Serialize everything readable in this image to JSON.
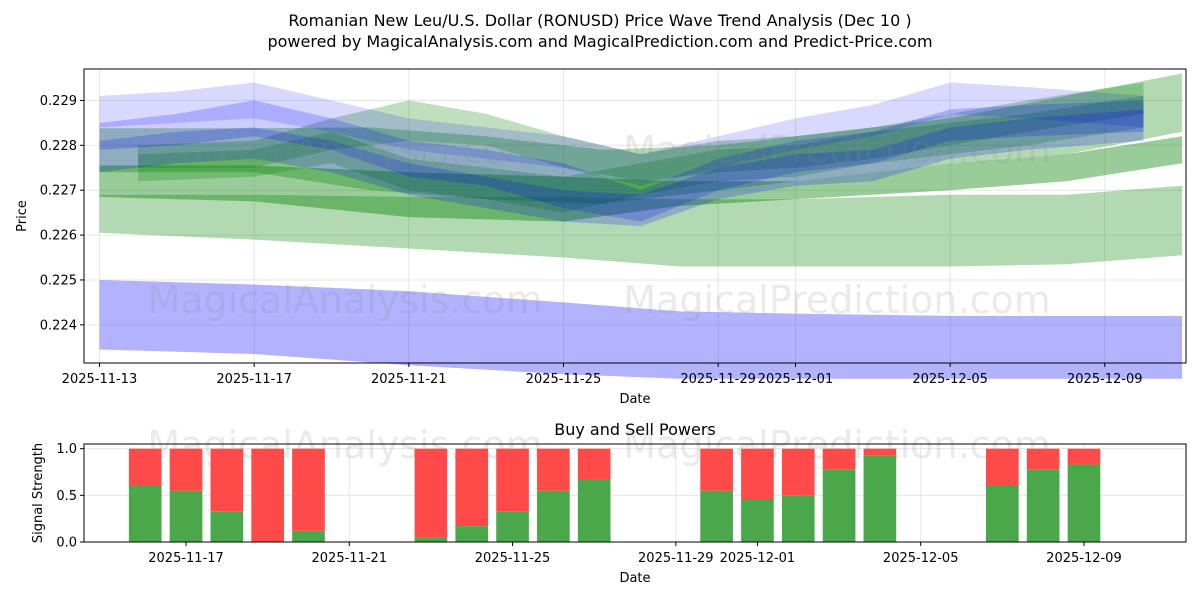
{
  "title_line1": "Romanian New Leu/U.S. Dollar (RONUSD) Price Wave Trend Analysis (Dec 10 )",
  "title_line2": "powered by MagicalAnalysis.com and MagicalPrediction.com and Predict-Price.com",
  "watermarks": {
    "left": "MagicalAnalysis.com",
    "right": "MagicalPrediction.com"
  },
  "colors": {
    "blue_band": "#0000ff",
    "green_band": "#008000",
    "buy": "#4aa84a",
    "sell": "#ff4a4a",
    "watermark": "#c8c8c8"
  },
  "chart_data": [
    {
      "type": "area",
      "title": "",
      "xlabel": "Date",
      "ylabel": "Price",
      "x_range": [
        "2025-11-12",
        "2025-12-11"
      ],
      "ylim": [
        0.22315,
        0.2297
      ],
      "grid": true,
      "x_ticks": [
        "2025-11-13",
        "2025-11-17",
        "2025-11-21",
        "2025-11-25",
        "2025-11-29",
        "2025-12-01",
        "2025-12-05",
        "2025-12-09"
      ],
      "y_ticks": [
        0.224,
        0.225,
        0.226,
        0.227,
        0.228,
        0.229
      ],
      "series": [
        {
          "name": "green-low-band",
          "color": "green",
          "opacity": 0.3,
          "x": [
            "2025-11-13",
            "2025-11-17",
            "2025-11-21",
            "2025-11-25",
            "2025-11-28",
            "2025-12-01",
            "2025-12-05",
            "2025-12-08",
            "2025-12-11"
          ],
          "upper": [
            0.2269,
            0.2269,
            0.22685,
            0.22685,
            0.2268,
            0.2268,
            0.2269,
            0.2269,
            0.2271
          ],
          "lower": [
            0.22605,
            0.2259,
            0.2257,
            0.2255,
            0.2253,
            0.2253,
            0.2253,
            0.22535,
            0.22555
          ]
        },
        {
          "name": "blue-low-band",
          "color": "blue",
          "opacity": 0.3,
          "x": [
            "2025-11-13",
            "2025-11-17",
            "2025-11-21",
            "2025-11-25",
            "2025-11-28",
            "2025-12-01",
            "2025-12-05",
            "2025-12-08",
            "2025-12-11"
          ],
          "upper": [
            0.225,
            0.2249,
            0.22475,
            0.2245,
            0.2243,
            0.22425,
            0.2242,
            0.2242,
            0.2242
          ],
          "lower": [
            0.22345,
            0.22335,
            0.2231,
            0.2229,
            0.2228,
            0.2228,
            0.2228,
            0.2228,
            0.2228
          ]
        },
        {
          "name": "green-mid-band-1",
          "color": "green",
          "opacity": 0.4,
          "x": [
            "2025-11-13",
            "2025-11-17",
            "2025-11-21",
            "2025-11-25",
            "2025-11-28",
            "2025-12-01",
            "2025-12-05",
            "2025-12-08",
            "2025-12-11"
          ],
          "upper": [
            0.22755,
            0.22755,
            0.2274,
            0.2273,
            0.2272,
            0.2272,
            0.2276,
            0.2278,
            0.2282
          ],
          "lower": [
            0.22685,
            0.22675,
            0.2264,
            0.2263,
            0.22665,
            0.2268,
            0.227,
            0.2272,
            0.2276
          ]
        },
        {
          "name": "green-mid-band-2",
          "color": "green",
          "opacity": 0.3,
          "x": [
            "2025-11-13",
            "2025-11-17",
            "2025-11-20",
            "2025-11-23",
            "2025-11-26",
            "2025-11-29",
            "2025-12-01",
            "2025-12-05",
            "2025-12-08",
            "2025-12-11"
          ],
          "upper": [
            0.22838,
            0.22838,
            0.2284,
            0.2282,
            0.2279,
            0.228,
            0.2282,
            0.2286,
            0.2291,
            0.2296
          ],
          "lower": [
            0.2274,
            0.2274,
            0.227,
            0.2268,
            0.2267,
            0.227,
            0.2272,
            0.2276,
            0.2278,
            0.2283
          ]
        },
        {
          "name": "green-wave-1",
          "color": "green",
          "opacity": 0.25,
          "x": [
            "2025-11-14",
            "2025-11-17",
            "2025-11-19",
            "2025-11-21",
            "2025-11-23",
            "2025-11-25",
            "2025-11-27",
            "2025-11-29",
            "2025-12-01",
            "2025-12-03",
            "2025-12-05",
            "2025-12-07",
            "2025-12-10"
          ],
          "upper": [
            0.228,
            0.2281,
            0.2286,
            0.229,
            0.2287,
            0.2282,
            0.2278,
            0.2281,
            0.2282,
            0.2284,
            0.2287,
            0.229,
            0.2294
          ],
          "lower": [
            0.2275,
            0.2275,
            0.2279,
            0.2281,
            0.228,
            0.2275,
            0.2272,
            0.2274,
            0.2275,
            0.2277,
            0.228,
            0.2283,
            0.2287
          ]
        },
        {
          "name": "green-wave-2",
          "color": "green",
          "opacity": 0.25,
          "x": [
            "2025-11-14",
            "2025-11-17",
            "2025-11-19",
            "2025-11-21",
            "2025-11-23",
            "2025-11-25",
            "2025-11-27",
            "2025-11-29",
            "2025-12-01",
            "2025-12-03",
            "2025-12-05",
            "2025-12-07",
            "2025-12-10"
          ],
          "upper": [
            0.2278,
            0.2279,
            0.2283,
            0.2277,
            0.2275,
            0.2273,
            0.2276,
            0.2279,
            0.228,
            0.2283,
            0.2285,
            0.2287,
            0.2291
          ],
          "lower": [
            0.2272,
            0.2273,
            0.2276,
            0.227,
            0.2268,
            0.2265,
            0.2269,
            0.2272,
            0.2273,
            0.2276,
            0.2278,
            0.228,
            0.2284
          ]
        },
        {
          "name": "blue-wave-1",
          "color": "blue",
          "opacity": 0.15,
          "x": [
            "2025-11-13",
            "2025-11-15",
            "2025-11-17",
            "2025-11-19",
            "2025-11-21",
            "2025-11-23",
            "2025-11-25",
            "2025-11-27",
            "2025-11-29",
            "2025-12-01",
            "2025-12-03",
            "2025-12-05",
            "2025-12-07",
            "2025-12-10"
          ],
          "upper": [
            0.2291,
            0.2292,
            0.2294,
            0.229,
            0.2286,
            0.2284,
            0.2282,
            0.2278,
            0.2282,
            0.2286,
            0.2289,
            0.2294,
            0.2293,
            0.2291
          ],
          "lower": [
            0.2284,
            0.2285,
            0.2286,
            0.2283,
            0.2279,
            0.2277,
            0.2275,
            0.2271,
            0.2275,
            0.2279,
            0.2282,
            0.2287,
            0.2286,
            0.2284
          ]
        },
        {
          "name": "blue-wave-2",
          "color": "blue",
          "opacity": 0.2,
          "x": [
            "2025-11-13",
            "2025-11-15",
            "2025-11-17",
            "2025-11-19",
            "2025-11-21",
            "2025-11-23",
            "2025-11-25",
            "2025-11-27",
            "2025-11-29",
            "2025-12-01",
            "2025-12-03",
            "2025-12-05",
            "2025-12-07",
            "2025-12-10"
          ],
          "upper": [
            0.2285,
            0.2287,
            0.229,
            0.2286,
            0.2281,
            0.2279,
            0.2276,
            0.227,
            0.2277,
            0.2281,
            0.2283,
            0.2288,
            0.2289,
            0.229
          ],
          "lower": [
            0.2279,
            0.228,
            0.2282,
            0.2279,
            0.2273,
            0.2271,
            0.2266,
            0.2263,
            0.227,
            0.2274,
            0.2276,
            0.2281,
            0.2282,
            0.2283
          ]
        },
        {
          "name": "blue-wave-3",
          "color": "blue",
          "opacity": 0.2,
          "x": [
            "2025-11-13",
            "2025-11-15",
            "2025-11-17",
            "2025-11-19",
            "2025-11-21",
            "2025-11-23",
            "2025-11-25",
            "2025-11-27",
            "2025-11-29",
            "2025-12-01",
            "2025-12-03",
            "2025-12-05",
            "2025-12-07",
            "2025-12-10"
          ],
          "upper": [
            0.2281,
            0.2283,
            0.2284,
            0.2281,
            0.2276,
            0.2273,
            0.227,
            0.2269,
            0.2275,
            0.2278,
            0.2279,
            0.2284,
            0.2286,
            0.2288
          ],
          "lower": [
            0.2274,
            0.2276,
            0.2277,
            0.2274,
            0.2269,
            0.2266,
            0.2263,
            0.2262,
            0.2268,
            0.2271,
            0.2272,
            0.2277,
            0.2279,
            0.2281
          ]
        }
      ]
    },
    {
      "type": "bar",
      "title": "Buy and Sell Powers",
      "xlabel": "Date",
      "ylabel": "Signal Strength",
      "ylim": [
        0,
        1.05
      ],
      "y_ticks": [
        0.0,
        0.5,
        1.0
      ],
      "x_ticks": [
        "2025-11-17",
        "2025-11-21",
        "2025-11-25",
        "2025-11-29",
        "2025-12-01",
        "2025-12-05",
        "2025-12-09"
      ],
      "x_range": [
        "2025-11-14.5",
        "2025-12-11.5"
      ],
      "categories": [
        "2025-11-16",
        "2025-11-17",
        "2025-11-18",
        "2025-11-19",
        "2025-11-20",
        "2025-11-23",
        "2025-11-24",
        "2025-11-25",
        "2025-11-26",
        "2025-11-27",
        "2025-11-30",
        "2025-12-01",
        "2025-12-02",
        "2025-12-03",
        "2025-12-04",
        "2025-12-07",
        "2025-12-08",
        "2025-12-09"
      ],
      "series": [
        {
          "name": "Buy",
          "color": "buy",
          "values": [
            0.6,
            0.55,
            0.33,
            0.0,
            0.12,
            0.05,
            0.17,
            0.33,
            0.55,
            0.67,
            0.55,
            0.45,
            0.5,
            0.78,
            0.93,
            0.6,
            0.78,
            0.83
          ]
        },
        {
          "name": "Sell",
          "color": "sell",
          "values": [
            0.4,
            0.45,
            0.67,
            1.0,
            0.88,
            0.95,
            0.83,
            0.67,
            0.45,
            0.33,
            0.45,
            0.55,
            0.5,
            0.22,
            0.07,
            0.4,
            0.22,
            0.17
          ]
        }
      ]
    }
  ]
}
